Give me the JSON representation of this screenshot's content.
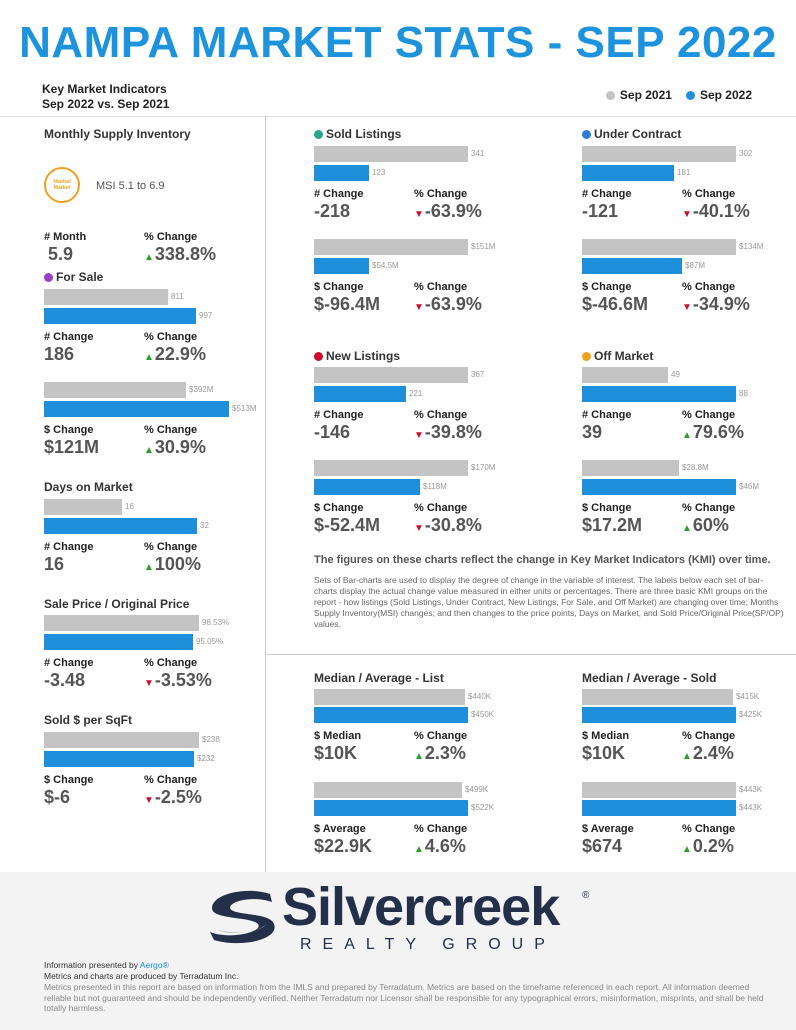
{
  "title": "NAMPA MARKET STATS - SEP 2022",
  "header": {
    "line1": "Key Market Indicators",
    "line2": "Sep 2022 vs. Sep 2021"
  },
  "legend": [
    {
      "label": "Sep 2021",
      "color": "#c4c4c4"
    },
    {
      "label": "Sep 2022",
      "color": "#1d8fdb"
    }
  ],
  "left": {
    "msi": {
      "title": "Monthly Supply Inventory",
      "badge_line1": "Neutral",
      "badge_line2": "Market",
      "range": "MSI 5.1 to 6.9",
      "l1": "# Month",
      "v1": "5.9",
      "l2": "% Change",
      "v2": "338.8%"
    },
    "for_sale": {
      "title": "For Sale",
      "dot": "#9b3fc9",
      "c1": {
        "g": "811",
        "b": "997",
        "l1": "# Change",
        "v1": "186",
        "l2": "% Change",
        "v2": "22.9%",
        "gw": 0.8,
        "bw": 0.98
      },
      "c2": {
        "g": "$392M",
        "b": "$513M",
        "l1": "$ Change",
        "v1": "$121M",
        "l2": "% Change",
        "v2": "30.9%",
        "gw": 0.77,
        "bw": 1.0
      }
    },
    "dom": {
      "title": "Days on Market",
      "c1": {
        "g": "16",
        "b": "32",
        "l1": "# Change",
        "v1": "16",
        "l2": "% Change",
        "v2": "100%",
        "gw": 0.5,
        "bw": 0.99
      }
    },
    "spop": {
      "title": "Sale Price / Original Price",
      "c1": {
        "g": "98.53%",
        "b": "95.05%",
        "l1": "# Change",
        "v1": "-3.48",
        "l2": "% Change",
        "v2": "-3.53%",
        "gw": 1.0,
        "bw": 0.96
      }
    },
    "sqft": {
      "title": "Sold $ per SqFt",
      "c1": {
        "g": "$238",
        "b": "$232",
        "l1": "$ Change",
        "v1": "$-6",
        "l2": "% Change",
        "v2": "-2.5%",
        "gw": 1.0,
        "bw": 0.97
      }
    }
  },
  "sold": {
    "title": "Sold Listings",
    "dot": "#2aa58a",
    "c1": {
      "g": "341",
      "b": "123",
      "l1": "# Change",
      "v1": "-218",
      "l2": "% Change",
      "v2": "-63.9%",
      "gw": 1.0,
      "bw": 0.36
    },
    "c2": {
      "g": "$151M",
      "b": "$54.5M",
      "l1": "$ Change",
      "v1": "$-96.4M",
      "l2": "% Change",
      "v2": "-63.9%",
      "gw": 1.0,
      "bw": 0.36
    }
  },
  "uc": {
    "title": "Under Contract",
    "dot": "#2a7fd0",
    "c1": {
      "g": "302",
      "b": "181",
      "l1": "# Change",
      "v1": "-121",
      "l2": "% Change",
      "v2": "-40.1%",
      "gw": 1.0,
      "bw": 0.6
    },
    "c2": {
      "g": "$134M",
      "b": "$87M",
      "l1": "$ Change",
      "v1": "$-46.6M",
      "l2": "% Change",
      "v2": "-34.9%",
      "gw": 1.0,
      "bw": 0.65
    }
  },
  "nl": {
    "title": "New Listings",
    "dot": "#c8102e",
    "c1": {
      "g": "367",
      "b": "221",
      "l1": "# Change",
      "v1": "-146",
      "l2": "% Change",
      "v2": "-39.8%",
      "gw": 1.0,
      "bw": 0.6
    },
    "c2": {
      "g": "$170M",
      "b": "$118M",
      "l1": "$ Change",
      "v1": "$-52.4M",
      "l2": "% Change",
      "v2": "-30.8%",
      "gw": 1.0,
      "bw": 0.69
    }
  },
  "om": {
    "title": "Off Market",
    "dot": "#f0a020",
    "c1": {
      "g": "49",
      "b": "88",
      "l1": "# Change",
      "v1": "39",
      "l2": "% Change",
      "v2": "79.6%",
      "gw": 0.56,
      "bw": 1.0
    },
    "c2": {
      "g": "$28.8M",
      "b": "$46M",
      "l1": "$ Change",
      "v1": "$17.2M",
      "l2": "% Change",
      "v2": "60%",
      "gw": 0.63,
      "bw": 1.0
    }
  },
  "note_head": "The figures on these charts reflect the change in Key Market Indicators (KMI) over time.",
  "note_body": "Sets of Bar-charts are used to display the degree of change in the variable of interest. The labels below each set of bar-charts display the actual change value measured in either units or percentages. There are three basic KMI groups on the report - how listings (Sold Listings, Under Contract, New Listings, For Sale, and Off Market) are changing over time; Months Supply Inventory(MSI) changes; and then changes to the price points, Days on Market, and Sold Price/Original Price(SP/OP) values.",
  "mal": {
    "title": "Median / Average - List",
    "c1": {
      "g": "$440K",
      "b": "$450K",
      "l1": "$ Median",
      "v1": "$10K",
      "l2": "% Change",
      "v2": "2.3%",
      "gw": 0.98,
      "bw": 1.0
    },
    "c2": {
      "g": "$499K",
      "b": "$522K",
      "l1": "$ Average",
      "v1": "$22.9K",
      "l2": "% Change",
      "v2": "4.6%",
      "gw": 0.96,
      "bw": 1.0
    }
  },
  "mas": {
    "title": "Median / Average - Sold",
    "c1": {
      "g": "$415K",
      "b": "$425K",
      "l1": "$ Median",
      "v1": "$10K",
      "l2": "% Change",
      "v2": "2.4%",
      "gw": 0.98,
      "bw": 1.0
    },
    "c2": {
      "g": "$443K",
      "b": "$443K",
      "l1": "$ Average",
      "v1": "$674",
      "l2": "% Change",
      "v2": "0.2%",
      "gw": 1.0,
      "bw": 1.0
    }
  },
  "logo": {
    "name": "Silvercreek",
    "sub": "REALTY GROUP",
    "reg": "®"
  },
  "footer": {
    "presented": "Information presented by ",
    "presented_link": "Aergo®",
    "produced": "Metrics and charts are produced by Terradatum Inc.",
    "disclaimer": "Metrics presented in this report are based on information from the IMLS and prepared by Terradatum. Metrics are based on the timeframe referenced in each report. All information deemed reliable but not guaranteed and should be independently verified. Neither Terradatum nor Licensor shall be responsible for any typographical errors, misinformation, misprints, and shall be held totally harmless."
  }
}
